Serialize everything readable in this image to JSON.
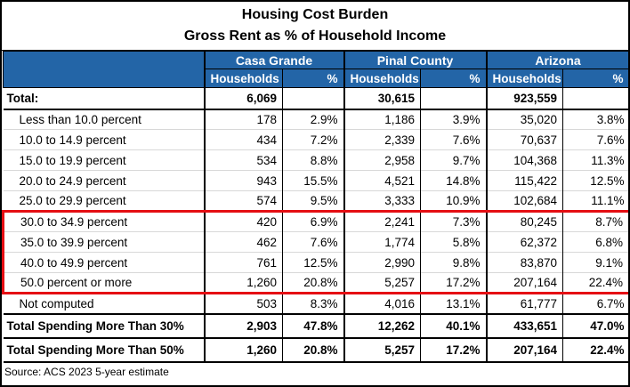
{
  "title": "Housing Cost Burden",
  "subtitle": "Gross Rent as % of Household Income",
  "source_note": "Source: ACS 2023 5-year estimate",
  "colors": {
    "header_bg": "#2365A7",
    "header_text": "#FFFFFF",
    "highlight_box": "#E50E13",
    "grid": "#000000",
    "row_divider": "#D8D8D8"
  },
  "chart_data": {
    "type": "table",
    "title": "Housing Cost Burden — Gross Rent as % of Household Income",
    "column_groups": [
      "Casa Grande",
      "Pinal County",
      "Arizona"
    ],
    "sub_columns": [
      "Households",
      "%"
    ],
    "rows": [
      {
        "label": "Total:",
        "values": [
          "6,069",
          "",
          "30,615",
          "",
          "923,559",
          ""
        ],
        "bold": true,
        "row_style": "total"
      },
      {
        "label": "Less than 10.0 percent",
        "values": [
          "178",
          "2.9%",
          "1,186",
          "3.9%",
          "35,020",
          "3.8%"
        ],
        "indent": true
      },
      {
        "label": "10.0 to 14.9 percent",
        "values": [
          "434",
          "7.2%",
          "2,339",
          "7.6%",
          "70,637",
          "7.6%"
        ],
        "indent": true
      },
      {
        "label": "15.0 to 19.9 percent",
        "values": [
          "534",
          "8.8%",
          "2,958",
          "9.7%",
          "104,368",
          "11.3%"
        ],
        "indent": true
      },
      {
        "label": "20.0 to 24.9 percent",
        "values": [
          "943",
          "15.5%",
          "4,521",
          "14.8%",
          "115,422",
          "12.5%"
        ],
        "indent": true
      },
      {
        "label": "25.0 to 29.9 percent",
        "values": [
          "574",
          "9.5%",
          "3,333",
          "10.9%",
          "102,684",
          "11.1%"
        ],
        "indent": true
      },
      {
        "label": "30.0 to 34.9 percent",
        "values": [
          "420",
          "6.9%",
          "2,241",
          "7.3%",
          "80,245",
          "8.7%"
        ],
        "indent": true,
        "highlight": "start"
      },
      {
        "label": "35.0 to 39.9 percent",
        "values": [
          "462",
          "7.6%",
          "1,774",
          "5.8%",
          "62,372",
          "6.8%"
        ],
        "indent": true,
        "highlight": "mid"
      },
      {
        "label": "40.0 to 49.9 percent",
        "values": [
          "761",
          "12.5%",
          "2,990",
          "9.8%",
          "83,870",
          "9.1%"
        ],
        "indent": true,
        "highlight": "mid"
      },
      {
        "label": "50.0 percent or more",
        "values": [
          "1,260",
          "20.8%",
          "5,257",
          "17.2%",
          "207,164",
          "22.4%"
        ],
        "indent": true,
        "highlight": "end"
      },
      {
        "label": "Not computed",
        "values": [
          "503",
          "8.3%",
          "4,016",
          "13.1%",
          "61,777",
          "6.7%"
        ],
        "indent": true
      },
      {
        "label": "Total Spending More Than 30%",
        "values": [
          "2,903",
          "47.8%",
          "12,262",
          "40.1%",
          "433,651",
          "47.0%"
        ],
        "bold": true,
        "row_style": "summary"
      },
      {
        "label": "Total Spending More Than 50%",
        "values": [
          "1,260",
          "20.8%",
          "5,257",
          "17.2%",
          "207,164",
          "22.4%"
        ],
        "bold": true,
        "row_style": "summary"
      }
    ]
  }
}
